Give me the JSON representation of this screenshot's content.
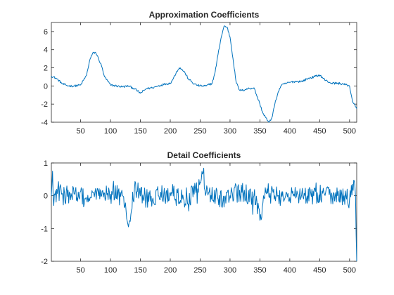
{
  "chart_data": [
    {
      "type": "line",
      "title": "Approximation Coefficients",
      "xlabel": "",
      "ylabel": "",
      "xlim": [
        1,
        512
      ],
      "ylim": [
        -4,
        7
      ],
      "xticks": [
        50,
        100,
        150,
        200,
        250,
        300,
        350,
        400,
        450,
        500
      ],
      "yticks": [
        -4,
        -2,
        0,
        2,
        4,
        6
      ],
      "grid": false,
      "legend": "none",
      "color": "#0072bd",
      "n_points": 512,
      "series": [
        {
          "x": [
            1,
            10,
            20,
            30,
            40,
            50,
            60,
            65,
            70,
            75,
            80,
            85,
            90,
            100,
            110,
            120,
            130,
            140,
            150,
            160,
            170,
            180,
            190,
            200,
            205,
            210,
            215,
            220,
            225,
            230,
            240,
            250,
            260,
            270,
            275,
            280,
            285,
            290,
            295,
            300,
            305,
            310,
            315,
            320,
            330,
            340,
            350,
            355,
            360,
            365,
            370,
            375,
            380,
            385,
            390,
            400,
            410,
            420,
            430,
            440,
            450,
            460,
            470,
            480,
            490,
            500,
            505,
            512
          ],
          "values": [
            1.1,
            0.8,
            0.2,
            0.0,
            0.0,
            0.1,
            1.2,
            2.8,
            3.6,
            3.7,
            3.0,
            2.2,
            1.0,
            0.1,
            0.0,
            -0.1,
            0.0,
            -0.3,
            -0.8,
            -0.3,
            -0.2,
            0.0,
            0.2,
            0.3,
            0.8,
            1.5,
            2.0,
            1.8,
            1.4,
            0.8,
            0.2,
            0.0,
            0.0,
            0.3,
            1.5,
            3.5,
            5.3,
            6.6,
            6.5,
            5.4,
            3.0,
            0.5,
            -0.4,
            -0.5,
            -0.3,
            -0.2,
            -2.0,
            -3.0,
            -3.5,
            -4.1,
            -3.5,
            -2.0,
            -0.8,
            0.0,
            0.2,
            0.4,
            0.5,
            0.5,
            0.8,
            1.0,
            1.2,
            0.6,
            0.3,
            0.3,
            0.2,
            0.0,
            -1.7,
            -2.5
          ]
        }
      ]
    },
    {
      "type": "line",
      "title": "Detail Coefficients",
      "xlabel": "",
      "ylabel": "",
      "xlim": [
        1,
        512
      ],
      "ylim": [
        -2,
        1
      ],
      "xticks": [
        50,
        100,
        150,
        200,
        250,
        300,
        350,
        400,
        450,
        500
      ],
      "yticks": [
        -2,
        -1,
        0,
        1
      ],
      "grid": false,
      "legend": "none",
      "color": "#0072bd",
      "n_points": 512,
      "noise_amplitude": 0.3,
      "series": [
        {
          "x": [
            1,
            3,
            5,
            10,
            20,
            40,
            60,
            80,
            100,
            120,
            130,
            140,
            160,
            180,
            200,
            220,
            240,
            255,
            260,
            280,
            300,
            320,
            340,
            350,
            360,
            380,
            400,
            420,
            440,
            460,
            480,
            500,
            505,
            509,
            510,
            511,
            512
          ],
          "values": [
            0.0,
            0.75,
            -0.3,
            0.2,
            0.0,
            0.05,
            -0.1,
            0.0,
            0.05,
            0.0,
            -0.95,
            0.2,
            -0.1,
            0.0,
            0.1,
            -0.1,
            0.05,
            0.7,
            0.1,
            -0.1,
            0.0,
            0.1,
            0.0,
            -0.75,
            0.1,
            0.0,
            -0.05,
            0.05,
            0.0,
            0.1,
            0.0,
            -0.1,
            0.35,
            0.3,
            0.0,
            -1.2,
            -2.0
          ]
        }
      ]
    }
  ]
}
